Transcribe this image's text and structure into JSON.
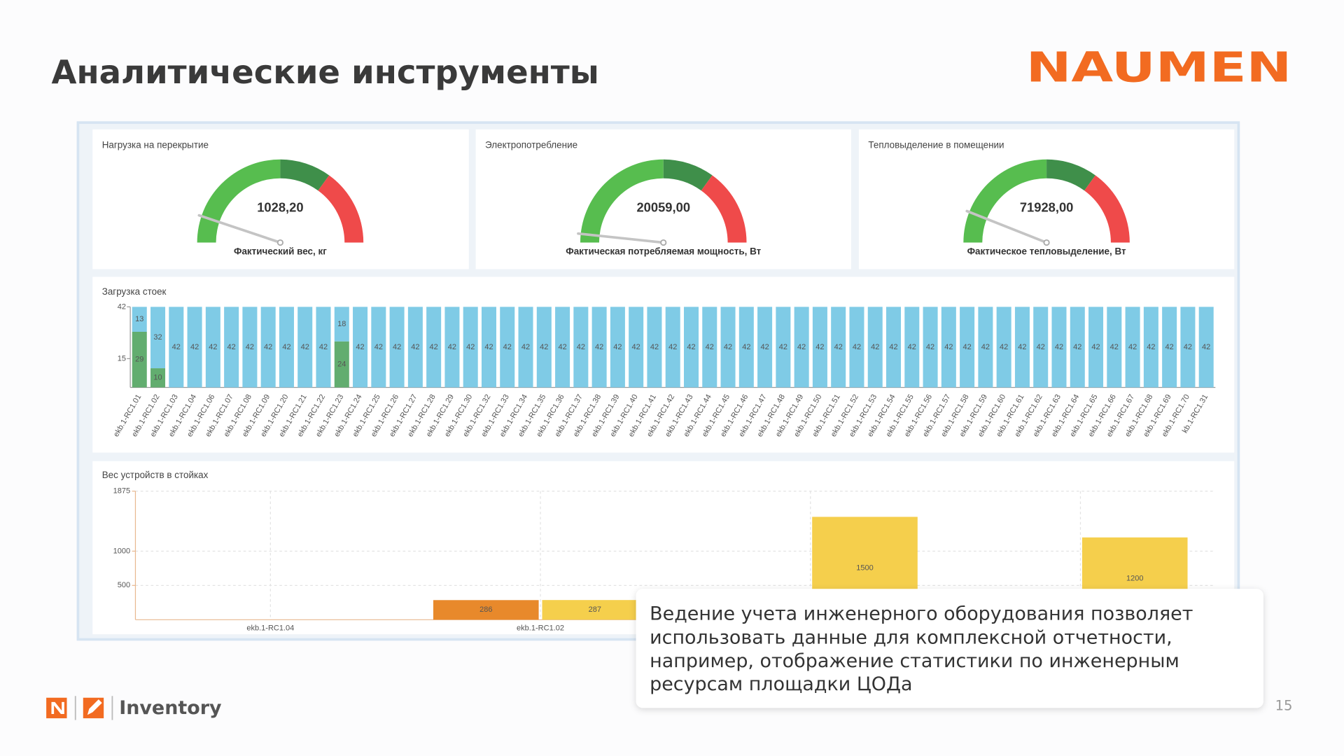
{
  "title": "Аналитические инструменты",
  "logo": "NAUMEN",
  "footer": {
    "product": "Inventory",
    "page_number": "15"
  },
  "callout": {
    "lines": [
      "Ведение учета инженерного оборудования позволяет",
      "использовать данные для комплексной отчетности,",
      "например, отображение статистики по инженерным",
      "ресурсам площадки ЦОДа"
    ]
  },
  "chart_data": [
    {
      "type": "gauge",
      "title": "Нагрузка на перекрытие",
      "value": 1028.2,
      "value_label": "1028,20",
      "label": "Фактический вес, кг",
      "ylim": [
        0,
        10000
      ],
      "bands": [
        {
          "from": 0,
          "to": 5000,
          "color": "#57bd4f"
        },
        {
          "from": 5000,
          "to": 7000,
          "color": "#3f8f4a"
        },
        {
          "from": 7000,
          "to": 10000,
          "color": "#ef4a4a"
        }
      ]
    },
    {
      "type": "gauge",
      "title": "Электропотребление",
      "value": 20059,
      "value_label": "20059,00",
      "label": "Фактическая потребляемая мощность, Вт",
      "ylim": [
        0,
        600000
      ],
      "bands": [
        {
          "from": 0,
          "to": 300000,
          "color": "#57bd4f"
        },
        {
          "from": 300000,
          "to": 420000,
          "color": "#3f8f4a"
        },
        {
          "from": 420000,
          "to": 600000,
          "color": "#ef4a4a"
        }
      ]
    },
    {
      "type": "gauge",
      "title": "Тепловыделение в помещении",
      "value": 71928,
      "value_label": "71928,00",
      "label": "Фактическое тепловыделение, Вт",
      "ylim": [
        0,
        600000
      ],
      "bands": [
        {
          "from": 0,
          "to": 300000,
          "color": "#57bd4f"
        },
        {
          "from": 300000,
          "to": 420000,
          "color": "#3f8f4a"
        },
        {
          "from": 420000,
          "to": 600000,
          "color": "#ef4a4a"
        }
      ]
    },
    {
      "type": "stacked_bar",
      "title": "Загрузка стоек",
      "ylim": [
        0,
        42
      ],
      "yticks": [
        15,
        42
      ],
      "categories": [
        "ekb.1-RC1.01",
        "ekb.1-RC1.02",
        "ekb.1-RC1.03",
        "ekb.1-RC1.04",
        "ekb.1-RC1.06",
        "ekb.1-RC1.07",
        "ekb.1-RC1.08",
        "ekb.1-RC1.09",
        "ekb.1-RC1.20",
        "ekb.1-RC1.21",
        "ekb.1-RC1.22",
        "ekb.1-RC1.23",
        "ekb.1-RC1.24",
        "ekb.1-RC1.25",
        "ekb.1-RC1.26",
        "ekb.1-RC1.27",
        "ekb.1-RC1.28",
        "ekb.1-RC1.29",
        "ekb.1-RC1.30",
        "ekb.1-RC1.32",
        "ekb.1-RC1.33",
        "ekb.1-RC1.34",
        "ekb.1-RC1.35",
        "ekb.1-RC1.36",
        "ekb.1-RC1.37",
        "ekb.1-RC1.38",
        "ekb.1-RC1.39",
        "ekb.1-RC1.40",
        "ekb.1-RC1.41",
        "ekb.1-RC1.42",
        "ekb.1-RC1.43",
        "ekb.1-RC1.44",
        "ekb.1-RC1.45",
        "ekb.1-RC1.46",
        "ekb.1-RC1.47",
        "ekb.1-RC1.48",
        "ekb.1-RC1.49",
        "ekb.1-RC1.50",
        "ekb.1-RC1.51",
        "ekb.1-RC1.52",
        "ekb.1-RC1.53",
        "ekb.1-RC1.54",
        "ekb.1-RC1.55",
        "ekb.1-RC1.56",
        "ekb.1-RC1.57",
        "ekb.1-RC1.58",
        "ekb.1-RC1.59",
        "ekb.1-RC1.60",
        "ekb.1-RC1.61",
        "ekb.1-RC1.62",
        "ekb.1-RC1.63",
        "ekb.1-RC1.64",
        "ekb.1-RC1.65",
        "ekb.1-RC1.66",
        "ekb.1-RC1.67",
        "ekb.1-RC1.68",
        "ekb.1-RC1.69",
        "ekb.1-RC1.70",
        "kb.1-RC1.31"
      ],
      "series": [
        {
          "color": "#62ad6f",
          "values": [
            29,
            10,
            null,
            null,
            null,
            null,
            null,
            null,
            null,
            null,
            null,
            24,
            null,
            null,
            null,
            null,
            null,
            null,
            null,
            null,
            null,
            null,
            null,
            null,
            null,
            null,
            null,
            null,
            null,
            null,
            null,
            null,
            null,
            null,
            null,
            null,
            null,
            null,
            null,
            null,
            null,
            null,
            null,
            null,
            null,
            null,
            null,
            null,
            null,
            null,
            null,
            null,
            null,
            null,
            null,
            null,
            null,
            null,
            null
          ]
        },
        {
          "color": "#7fcbe6",
          "values": [
            13,
            32,
            42,
            42,
            42,
            42,
            42,
            42,
            42,
            42,
            42,
            18,
            42,
            42,
            42,
            42,
            42,
            42,
            42,
            42,
            42,
            42,
            42,
            42,
            42,
            42,
            42,
            42,
            42,
            42,
            42,
            42,
            42,
            42,
            42,
            42,
            42,
            42,
            42,
            42,
            42,
            42,
            42,
            42,
            42,
            42,
            42,
            42,
            42,
            42,
            42,
            42,
            42,
            42,
            42,
            42,
            42,
            42,
            42
          ]
        }
      ]
    },
    {
      "type": "bar",
      "title": "Вес устройств в стойках",
      "ylim": [
        0,
        1875
      ],
      "yticks": [
        500,
        1000,
        1875
      ],
      "grid": true,
      "categories": [
        "ekb.1-RC1.04",
        "ekb.1-RC1.02",
        null,
        null
      ],
      "series": [
        {
          "color": "#e8892b",
          "values": [
            null,
            286,
            null,
            null
          ]
        },
        {
          "color": "#f5cf4c",
          "values": [
            null,
            287,
            1500,
            1200
          ]
        }
      ]
    }
  ]
}
